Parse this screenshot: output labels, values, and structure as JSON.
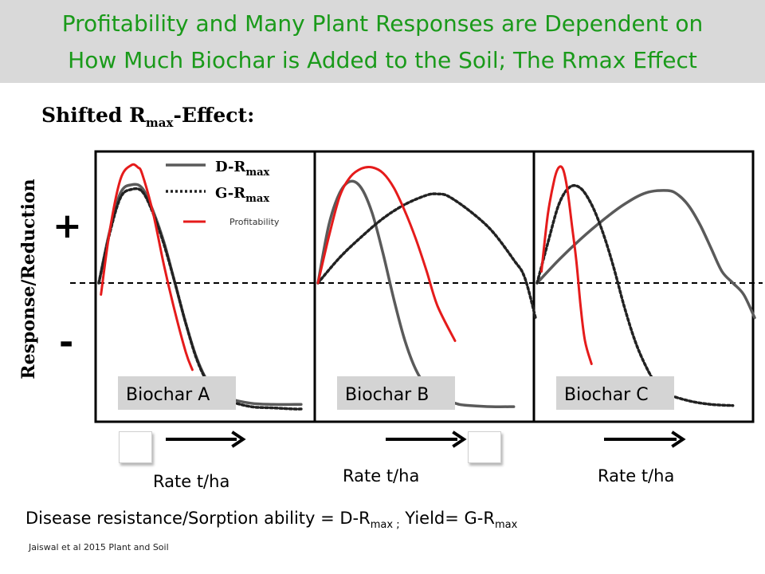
{
  "slide": {
    "title_line1": "Profitability and Many Plant Responses are Dependent on",
    "title_line2": "How Much Biochar is Added to the Soil; The Rmax Effect",
    "citation": "Jaiswal et al 2015 Plant and Soil",
    "definition": {
      "part1": "Disease resistance/Sorption ability = D-R",
      "sub1": "max ;",
      "part2": " Yield= G-R",
      "sub2": "max"
    }
  },
  "colors": {
    "title_text": "#1a9a1a",
    "title_band": "#d9d9d9",
    "d_rmax_line": "#5a5a5a",
    "g_rmax_line": "#222222",
    "profitability_line": "#e51b1b"
  },
  "chart_data": {
    "type": "line",
    "title": "Shifted R",
    "title_sub": "max",
    "title_suffix": "-Effect:",
    "ylabel": "Response/Reduction",
    "y_signs": {
      "positive": "+",
      "negative": "-"
    },
    "xlabel": "Rate t/ha",
    "baseline_y": 0,
    "xlim": [
      0,
      10
    ],
    "ylim": [
      -1.1,
      1.1
    ],
    "legend": {
      "placement": "top-left of first panel",
      "entries": [
        {
          "label": "D-R",
          "sub": "max",
          "style": "solid"
        },
        {
          "label": "G-R",
          "sub": "max",
          "style": "dotted"
        },
        {
          "label": "Profitability",
          "style": "red"
        }
      ]
    },
    "panels": [
      {
        "name": "Biochar A",
        "xlabel": "Rate t/ha",
        "series": [
          {
            "name": "D-R",
            "style": "solid",
            "x": [
              0,
              0.5,
              1,
              1.5,
              2,
              2.5,
              3,
              3.5,
              4,
              4.5,
              5,
              5.5,
              6,
              7,
              8,
              9,
              9.3
            ],
            "y": [
              0,
              0.45,
              0.78,
              0.85,
              0.82,
              0.62,
              0.35,
              0,
              -0.35,
              -0.65,
              -0.85,
              -0.95,
              -1,
              -1.04,
              -1.05,
              -1.05,
              -1.05
            ]
          },
          {
            "name": "G-R",
            "style": "dotted",
            "x": [
              0,
              0.5,
              1,
              1.5,
              2,
              2.5,
              3,
              3.5,
              4,
              4.5,
              5,
              5.5,
              6,
              7,
              8,
              9,
              9.3
            ],
            "y": [
              0,
              0.43,
              0.74,
              0.81,
              0.79,
              0.6,
              0.33,
              0,
              -0.35,
              -0.66,
              -0.86,
              -0.96,
              -1.02,
              -1.07,
              -1.08,
              -1.09,
              -1.09
            ]
          },
          {
            "name": "Profitability",
            "style": "red",
            "x": [
              0.1,
              0.5,
              1,
              1.5,
              1.8,
              2,
              2.5,
              3,
              3.5,
              4,
              4.3
            ],
            "y": [
              -0.1,
              0.45,
              0.9,
              1.02,
              1.0,
              0.94,
              0.6,
              0.15,
              -0.25,
              -0.6,
              -0.75
            ]
          }
        ]
      },
      {
        "name": "Biochar B",
        "xlabel": "Rate t/ha",
        "series": [
          {
            "name": "D-R",
            "style": "solid",
            "x": [
              0,
              0.5,
              1,
              1.5,
              2,
              2.5,
              3,
              3.5,
              4,
              4.5,
              5,
              5.5,
              6,
              6.5,
              7,
              8,
              9
            ],
            "y": [
              0,
              0.5,
              0.78,
              0.88,
              0.82,
              0.6,
              0.25,
              -0.15,
              -0.5,
              -0.75,
              -0.9,
              -0.98,
              -1.02,
              -1.05,
              -1.06,
              -1.07,
              -1.07
            ]
          },
          {
            "name": "G-R",
            "style": "dotted",
            "x": [
              0,
              1,
              2,
              3,
              4,
              5,
              5.5,
              6,
              7,
              8,
              9,
              9.5,
              10
            ],
            "y": [
              0,
              0.22,
              0.4,
              0.56,
              0.68,
              0.76,
              0.77,
              0.75,
              0.62,
              0.45,
              0.2,
              0.05,
              -0.3
            ]
          },
          {
            "name": "Profitability",
            "style": "red",
            "x": [
              0,
              0.5,
              1,
              1.5,
              2,
              2.5,
              3,
              3.5,
              4,
              4.5,
              5,
              5.5,
              6.3
            ],
            "y": [
              0,
              0.4,
              0.75,
              0.92,
              0.99,
              1.0,
              0.95,
              0.82,
              0.62,
              0.38,
              0.1,
              -0.2,
              -0.5
            ]
          }
        ]
      },
      {
        "name": "Biochar C",
        "xlabel": "Rate t/ha",
        "series": [
          {
            "name": "D-R",
            "style": "solid",
            "x": [
              0,
              1,
              2,
              3,
              4,
              5,
              6,
              6.5,
              7,
              7.5,
              8,
              8.5,
              9,
              9.5,
              10
            ],
            "y": [
              0,
              0.2,
              0.38,
              0.54,
              0.68,
              0.78,
              0.8,
              0.76,
              0.66,
              0.5,
              0.3,
              0.1,
              0,
              -0.1,
              -0.3
            ]
          },
          {
            "name": "G-R",
            "style": "dotted",
            "x": [
              0,
              0.5,
              1,
              1.5,
              2,
              2.5,
              3,
              3.5,
              4,
              4.5,
              5,
              5.5,
              6,
              7,
              8,
              9
            ],
            "y": [
              0,
              0.35,
              0.68,
              0.83,
              0.82,
              0.68,
              0.45,
              0.15,
              -0.2,
              -0.5,
              -0.72,
              -0.88,
              -0.96,
              -1.02,
              -1.05,
              -1.06
            ]
          },
          {
            "name": "Profitability",
            "style": "red",
            "x": [
              0.2,
              0.5,
              0.8,
              1,
              1.2,
              1.4,
              1.6,
              1.8,
              2,
              2.2,
              2.5
            ],
            "y": [
              0.1,
              0.6,
              0.9,
              1.0,
              0.98,
              0.8,
              0.5,
              0.2,
              -0.2,
              -0.5,
              -0.7
            ]
          }
        ]
      }
    ]
  }
}
